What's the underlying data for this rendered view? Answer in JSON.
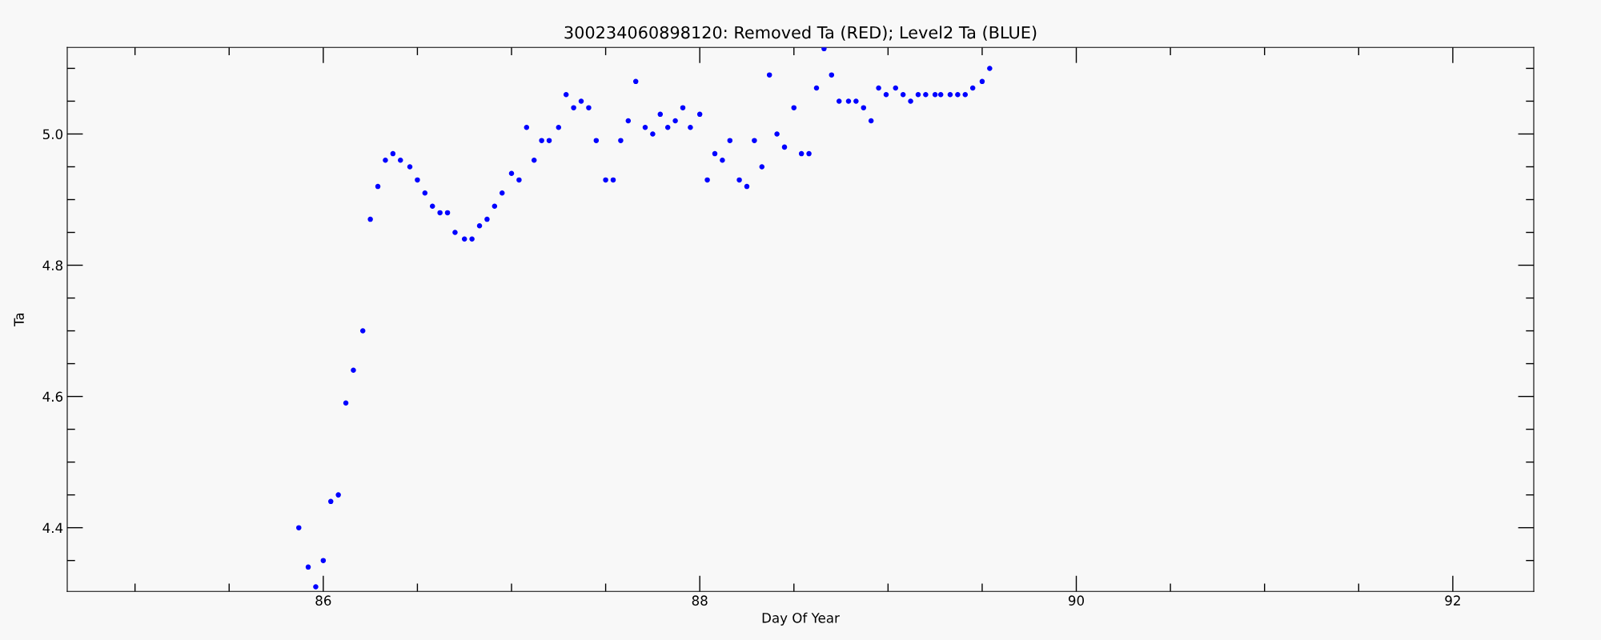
{
  "chart_data": {
    "type": "scatter",
    "title": "300234060898120: Removed Ta (RED); Level2 Ta (BLUE)",
    "xlabel": "Day Of Year",
    "ylabel": "Ta",
    "marker": "circle",
    "grid": false,
    "xlim": [
      84.64,
      92.43
    ],
    "ylim": [
      4.303,
      5.132
    ],
    "xticks": [
      {
        "value": 85,
        "label": null
      },
      {
        "value": 85.5,
        "label": null
      },
      86,
      {
        "value": 86.5,
        "label": null
      },
      {
        "value": 87,
        "label": null
      },
      {
        "value": 87.5,
        "label": null
      },
      88,
      {
        "value": 88.5,
        "label": null
      },
      {
        "value": 89,
        "label": null
      },
      {
        "value": 89.5,
        "label": null
      },
      90,
      {
        "value": 90.5,
        "label": null
      },
      {
        "value": 91,
        "label": null
      },
      {
        "value": 91.5,
        "label": null
      },
      92
    ],
    "yticks": [
      {
        "value": 4.35,
        "label": null
      },
      {
        "value": 4.4,
        "label": "4.4"
      },
      {
        "value": 4.45,
        "label": null
      },
      {
        "value": 4.5,
        "label": null
      },
      {
        "value": 4.55,
        "label": null
      },
      {
        "value": 4.6,
        "label": "4.6"
      },
      {
        "value": 4.65,
        "label": null
      },
      {
        "value": 4.7,
        "label": null
      },
      {
        "value": 4.75,
        "label": null
      },
      {
        "value": 4.8,
        "label": "4.8"
      },
      {
        "value": 4.85,
        "label": null
      },
      {
        "value": 4.9,
        "label": null
      },
      {
        "value": 4.95,
        "label": null
      },
      {
        "value": 5.0,
        "label": "5.0"
      },
      {
        "value": 5.05,
        "label": null
      },
      {
        "value": 5.1,
        "label": null
      }
    ],
    "series": [
      {
        "color": "#0000ff",
        "x": [
          85.87,
          85.92,
          85.96,
          86.0,
          86.04,
          86.08,
          86.12,
          86.16,
          86.21,
          86.25,
          86.29,
          86.33,
          86.37,
          86.41,
          86.46,
          86.5,
          86.54,
          86.58,
          86.62,
          86.66,
          86.7,
          86.75,
          86.79,
          86.83,
          86.87,
          86.91,
          86.95,
          87.0,
          87.04,
          87.08,
          87.12,
          87.16,
          87.2,
          87.25,
          87.29,
          87.33,
          87.37,
          87.41,
          87.45,
          87.5,
          87.54,
          87.58,
          87.62,
          87.66,
          87.71,
          87.75,
          87.79,
          87.83,
          87.87,
          87.91,
          87.95,
          88.0,
          88.04,
          88.08,
          88.12,
          88.16,
          88.21,
          88.25,
          88.29,
          88.33,
          88.37,
          88.41,
          88.45,
          88.5,
          88.54,
          88.58,
          88.62,
          88.66,
          88.7,
          88.74,
          88.79,
          88.83,
          88.87,
          88.91,
          88.95,
          88.99,
          89.04,
          89.08,
          89.12,
          89.16,
          89.2,
          89.25,
          89.28,
          89.33,
          89.37,
          89.41,
          89.45,
          89.5,
          89.54
        ],
        "values": [
          4.4,
          4.34,
          4.31,
          4.35,
          4.44,
          4.45,
          4.59,
          4.64,
          4.7,
          4.87,
          4.92,
          4.96,
          4.97,
          4.96,
          4.95,
          4.93,
          4.91,
          4.89,
          4.88,
          4.88,
          4.85,
          4.84,
          4.84,
          4.86,
          4.87,
          4.89,
          4.91,
          4.94,
          4.93,
          5.01,
          4.96,
          4.99,
          4.99,
          5.01,
          5.06,
          5.04,
          5.05,
          5.04,
          4.99,
          4.93,
          4.93,
          4.99,
          5.02,
          5.08,
          5.01,
          5.0,
          5.03,
          5.01,
          5.02,
          5.04,
          5.01,
          5.03,
          4.93,
          4.97,
          4.96,
          4.99,
          4.93,
          4.92,
          4.99,
          4.95,
          5.09,
          5.0,
          4.98,
          5.04,
          4.97,
          4.97,
          5.07,
          5.13,
          5.09,
          5.05,
          5.05,
          5.05,
          5.04,
          5.02,
          5.07,
          5.06,
          5.07,
          5.06,
          5.05,
          5.06,
          5.06,
          5.06,
          5.06,
          5.06,
          5.06,
          5.06,
          5.07,
          5.08,
          5.1
        ]
      }
    ]
  }
}
